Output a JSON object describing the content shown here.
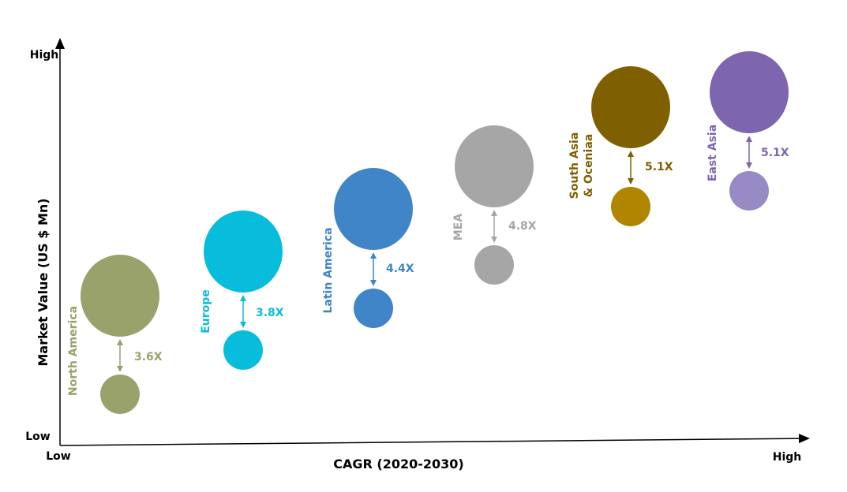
{
  "chart_data": {
    "type": "bubble",
    "title": "",
    "xlabel": "CAGR (2020-2030)",
    "ylabel": "Market Value (US $ Mn)",
    "x_ticks": {
      "low": "Low",
      "high": "High"
    },
    "y_ticks": {
      "low": "Low",
      "high": "High"
    },
    "grid": false,
    "regions": [
      {
        "name": "North America",
        "growth": "3.6X",
        "color": "#9aa26c",
        "color_small": "#9aa26c"
      },
      {
        "name": "Europe",
        "growth": "3.8X",
        "color": "#08bddb",
        "color_small": "#08bddb"
      },
      {
        "name": "Latin America",
        "growth": "4.4X",
        "color": "#3f85c8",
        "color_small": "#3f85c8"
      },
      {
        "name": "MEA",
        "growth": "4.8X",
        "color": "#a6a6a6",
        "color_small": "#a6a6a6"
      },
      {
        "name": "South Asia\n& Oceniaa",
        "growth": "5.1X",
        "color": "#7f6000",
        "color_small": "#b08500",
        "label_color": "#7f6000"
      },
      {
        "name": "East Asia",
        "growth": "5.1X",
        "color": "#7d66ad",
        "color_small": "#988ac4"
      }
    ]
  }
}
